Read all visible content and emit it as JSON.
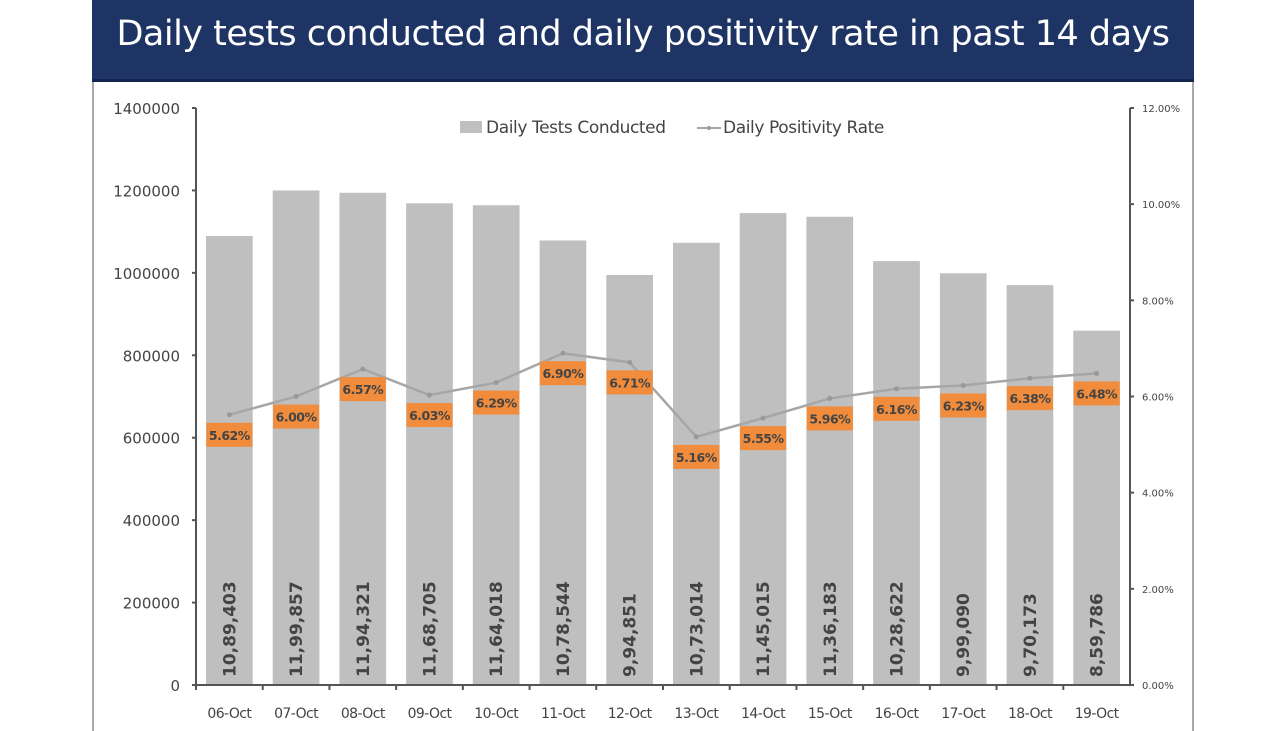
{
  "chart_data": {
    "type": "bar",
    "title": "Daily tests conducted and daily positivity rate in past 14 days",
    "xlabel": "",
    "ylabel": "",
    "ylabel_right": "",
    "categories": [
      "06-Oct",
      "07-Oct",
      "08-Oct",
      "09-Oct",
      "10-Oct",
      "11-Oct",
      "12-Oct",
      "13-Oct",
      "14-Oct",
      "15-Oct",
      "16-Oct",
      "17-Oct",
      "18-Oct",
      "19-Oct"
    ],
    "series": [
      {
        "name": "Daily Tests Conducted",
        "type": "bar",
        "axis": "left",
        "color": "#bfbfbf",
        "values": [
          1089403,
          1199857,
          1194321,
          1168705,
          1164018,
          1078544,
          994851,
          1073014,
          1145015,
          1136183,
          1028622,
          999090,
          970173,
          859786
        ],
        "labels": [
          "10,89,403",
          "11,99,857",
          "11,94,321",
          "11,68,705",
          "11,64,018",
          "10,78,544",
          "9,94,851",
          "10,73,014",
          "11,45,015",
          "11,36,183",
          "10,28,622",
          "9,99,090",
          "9,70,173",
          "8,59,786"
        ]
      },
      {
        "name": "Daily Positivity Rate",
        "type": "line",
        "axis": "right",
        "color": "#a6a6a6",
        "label_bg": "#f08c3c",
        "values": [
          5.62,
          6.0,
          6.57,
          6.03,
          6.29,
          6.9,
          6.71,
          5.16,
          5.55,
          5.96,
          6.16,
          6.23,
          6.38,
          6.48
        ],
        "labels": [
          "5.62%",
          "6.00%",
          "6.57%",
          "6.03%",
          "6.29%",
          "6.90%",
          "6.71%",
          "5.16%",
          "5.55%",
          "5.96%",
          "6.16%",
          "6.23%",
          "6.38%",
          "6.48%"
        ]
      }
    ],
    "y_left": {
      "ylim": [
        0,
        1400000
      ],
      "ticks": [
        0,
        200000,
        400000,
        600000,
        800000,
        1000000,
        1200000,
        1400000
      ],
      "tick_labels": [
        "0",
        "200000",
        "400000",
        "600000",
        "800000",
        "1000000",
        "1200000",
        "1400000"
      ]
    },
    "y_right": {
      "ylim": [
        0,
        12
      ],
      "ticks": [
        0,
        2,
        4,
        6,
        8,
        10,
        12
      ],
      "tick_labels": [
        "0.00%",
        "2.00%",
        "4.00%",
        "6.00%",
        "8.00%",
        "10.00%",
        "12.00%"
      ]
    },
    "legend": {
      "position": "top-center",
      "entries": [
        "Daily Tests Conducted",
        "Daily Positivity Rate"
      ]
    },
    "grid": false
  }
}
